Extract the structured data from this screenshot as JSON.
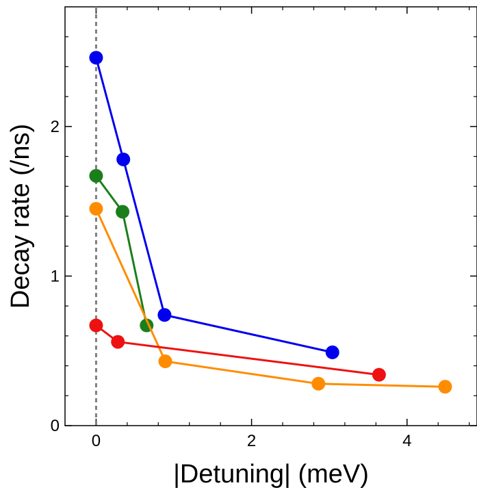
{
  "chart_data": {
    "type": "line",
    "xlabel": "|Detuning| (meV)",
    "ylabel": "Decay rate (/ns)",
    "xlim": [
      -0.4,
      4.9
    ],
    "ylim": [
      0,
      2.8
    ],
    "x_ticks": [
      0,
      2,
      4
    ],
    "x_tick_labels": [
      "0",
      "2",
      "4"
    ],
    "y_ticks": [
      0,
      1,
      2
    ],
    "y_tick_labels": [
      "0",
      "1",
      "2"
    ],
    "reference_line": {
      "x": 0,
      "style": "dashed",
      "color": "#808080"
    },
    "grid": false,
    "series": [
      {
        "color": "#0000ee",
        "x": [
          0,
          0.35,
          0.88,
          3.04
        ],
        "y": [
          2.46,
          1.78,
          0.74,
          0.49
        ]
      },
      {
        "color": "#1a7f1a",
        "x": [
          0,
          0.34,
          0.65
        ],
        "y": [
          1.67,
          1.43,
          0.67
        ]
      },
      {
        "color": "#ff8c00",
        "x": [
          0,
          0.89,
          2.86,
          4.49
        ],
        "y": [
          1.45,
          0.43,
          0.28,
          0.26
        ]
      },
      {
        "color": "#ee1111",
        "x": [
          0,
          0.28,
          3.64
        ],
        "y": [
          0.67,
          0.56,
          0.34
        ]
      }
    ]
  }
}
